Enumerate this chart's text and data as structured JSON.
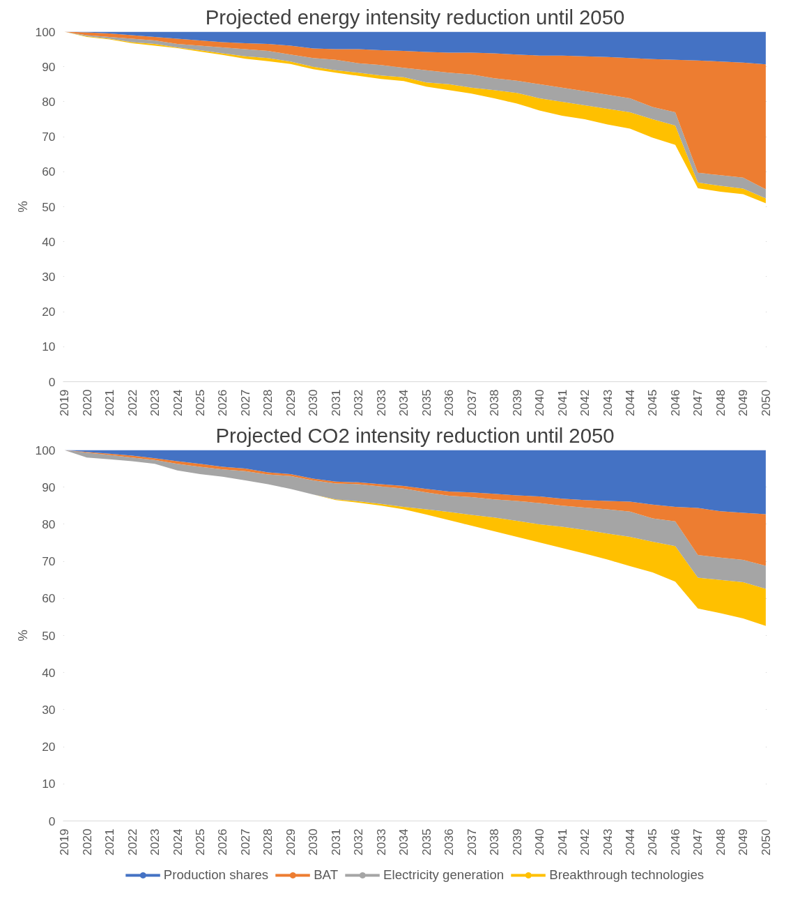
{
  "chart_data": [
    {
      "type": "area",
      "title": "Projected energy intensity reduction until 2050",
      "ylabel": "%",
      "categories": [
        "2019",
        "2020",
        "2021",
        "2022",
        "2023",
        "2024",
        "2025",
        "2026",
        "2027",
        "2028",
        "2029",
        "2030",
        "2031",
        "2032",
        "2033",
        "2034",
        "2035",
        "2036",
        "2037",
        "2038",
        "2039",
        "2040",
        "2041",
        "2042",
        "2043",
        "2044",
        "2045",
        "2046",
        "2047",
        "2048",
        "2049",
        "2050"
      ],
      "ylim": [
        0,
        100
      ],
      "yticks": [
        0,
        10,
        20,
        30,
        40,
        50,
        60,
        70,
        80,
        90,
        100
      ],
      "grid": "y",
      "stacked": true,
      "series": [
        {
          "color": "#ffffff",
          "values": [
            100,
            98.5,
            97.8,
            96.7,
            96,
            95.3,
            94.3,
            93.4,
            92.3,
            91.6,
            90.8,
            89.3,
            88.3,
            87.4,
            86.5,
            85.9,
            84.3,
            83.3,
            82.3,
            81,
            79.5,
            77.5,
            76,
            75,
            73.5,
            72.3,
            69.7,
            67.7,
            55.3,
            54.3,
            53.6,
            51
          ]
        },
        {
          "color": "#ffc000",
          "values": [
            0,
            0.2,
            0.2,
            0.3,
            0.5,
            0.2,
            0.4,
            0.4,
            0.7,
            0.9,
            0.7,
            0.7,
            0.7,
            0.9,
            1,
            1.1,
            1.2,
            1.7,
            1.7,
            2.3,
            3,
            3.5,
            4,
            4,
            4.5,
            4.7,
            5.3,
            5.5,
            1.6,
            1.7,
            1.6,
            1.4
          ]
        },
        {
          "color": "#a5a5a5",
          "values": [
            0,
            0.3,
            0.5,
            1,
            1,
            1,
            1.3,
            1.7,
            2,
            2,
            2,
            2.5,
            3,
            2.7,
            3,
            2.7,
            3.5,
            3.3,
            3.8,
            3.4,
            3.5,
            4,
            4,
            4,
            4,
            4,
            3.5,
            3.8,
            2.8,
            3,
            3.1,
            2.6
          ]
        },
        {
          "color": "#ed7d31",
          "values": [
            0,
            0.8,
            1,
            1,
            1,
            1.5,
            1.5,
            1.5,
            1.7,
            2,
            2.5,
            2.7,
            3,
            4,
            4.2,
            4.8,
            5.2,
            5.7,
            6.2,
            7.1,
            7.5,
            8.2,
            9.2,
            10,
            10.8,
            11.5,
            13.7,
            15,
            32.1,
            32.5,
            32.9,
            35.7
          ]
        },
        {
          "color": "#4472c4",
          "values": [
            0,
            0.2,
            0.5,
            1,
            1.5,
            2,
            2.5,
            3,
            3.3,
            3.5,
            4,
            4.8,
            5,
            5,
            5.3,
            5.5,
            5.8,
            6,
            6,
            6.2,
            6.5,
            6.8,
            6.8,
            7,
            7.2,
            7.5,
            7.8,
            8,
            8.2,
            8.5,
            8.8,
            9.3
          ]
        }
      ]
    },
    {
      "type": "area",
      "title": "Projected CO2 intensity reduction until 2050",
      "ylabel": "%",
      "categories": [
        "2019",
        "2020",
        "2021",
        "2022",
        "2023",
        "2024",
        "2025",
        "2026",
        "2027",
        "2028",
        "2029",
        "2030",
        "2031",
        "2032",
        "2033",
        "2034",
        "2035",
        "2036",
        "2037",
        "2038",
        "2039",
        "2040",
        "2041",
        "2042",
        "2043",
        "2044",
        "2045",
        "2046",
        "2047",
        "2048",
        "2049",
        "2050"
      ],
      "ylim": [
        0,
        100
      ],
      "yticks": [
        0,
        10,
        20,
        30,
        40,
        50,
        60,
        70,
        80,
        90,
        100
      ],
      "grid": "y",
      "legend": "bottom",
      "stacked": true,
      "series": [
        {
          "color": "#ffffff",
          "values": [
            100,
            98,
            97.5,
            97,
            96.3,
            94.5,
            93.5,
            92.8,
            91.8,
            90.8,
            89.5,
            88,
            86.5,
            85.8,
            85,
            84,
            82.6,
            81.1,
            79.6,
            78.1,
            76.6,
            75.1,
            73.6,
            72.1,
            70.5,
            68.7,
            67,
            64.5,
            57.3,
            56,
            54.6,
            52.6
          ]
        },
        {
          "name": "Breakthrough technologies",
          "color": "#ffc000",
          "values": [
            0,
            0,
            0,
            0,
            0,
            0,
            0,
            0,
            0,
            0,
            0,
            0,
            0.2,
            0.4,
            0.5,
            0.7,
            1.4,
            2.2,
            2.9,
            3.7,
            4.3,
            4.9,
            5.7,
            6.4,
            7,
            7.9,
            8.3,
            9.6,
            8.3,
            9,
            9.8,
            10
          ]
        },
        {
          "name": "Electricity generation",
          "color": "#a5a5a5",
          "values": [
            0,
            1.3,
            1.2,
            1,
            1,
            1.8,
            2,
            2,
            2.5,
            2.6,
            3.5,
            3.8,
            4.3,
            4.6,
            4.7,
            4.9,
            4.6,
            4.4,
            4.8,
            4.9,
            5.4,
            5.7,
            5.7,
            6,
            6.5,
            6.8,
            6.3,
            6.7,
            6.1,
            6,
            6,
            6.2
          ]
        },
        {
          "name": "BAT",
          "color": "#ed7d31",
          "values": [
            0,
            0.2,
            0.3,
            0.5,
            0.5,
            0.7,
            0.8,
            0.7,
            0.7,
            0.6,
            0.5,
            0.5,
            0.5,
            0.5,
            0.6,
            0.7,
            0.9,
            1.1,
            1.3,
            1.5,
            1.5,
            1.8,
            1.9,
            2,
            2.3,
            2.7,
            3.7,
            3.9,
            12.7,
            12.5,
            12.7,
            13.9
          ]
        },
        {
          "name": "Production shares",
          "color": "#4472c4",
          "values": [
            0,
            0.5,
            1,
            1.5,
            2.2,
            3,
            3.7,
            4.5,
            5,
            6,
            6.5,
            7.7,
            8.5,
            8.7,
            9.2,
            9.7,
            10.5,
            11.2,
            11.4,
            11.8,
            12.2,
            12.5,
            13.1,
            13.5,
            13.7,
            13.9,
            14.7,
            15.3,
            15.6,
            16.5,
            16.9,
            17.3
          ]
        }
      ]
    }
  ]
}
